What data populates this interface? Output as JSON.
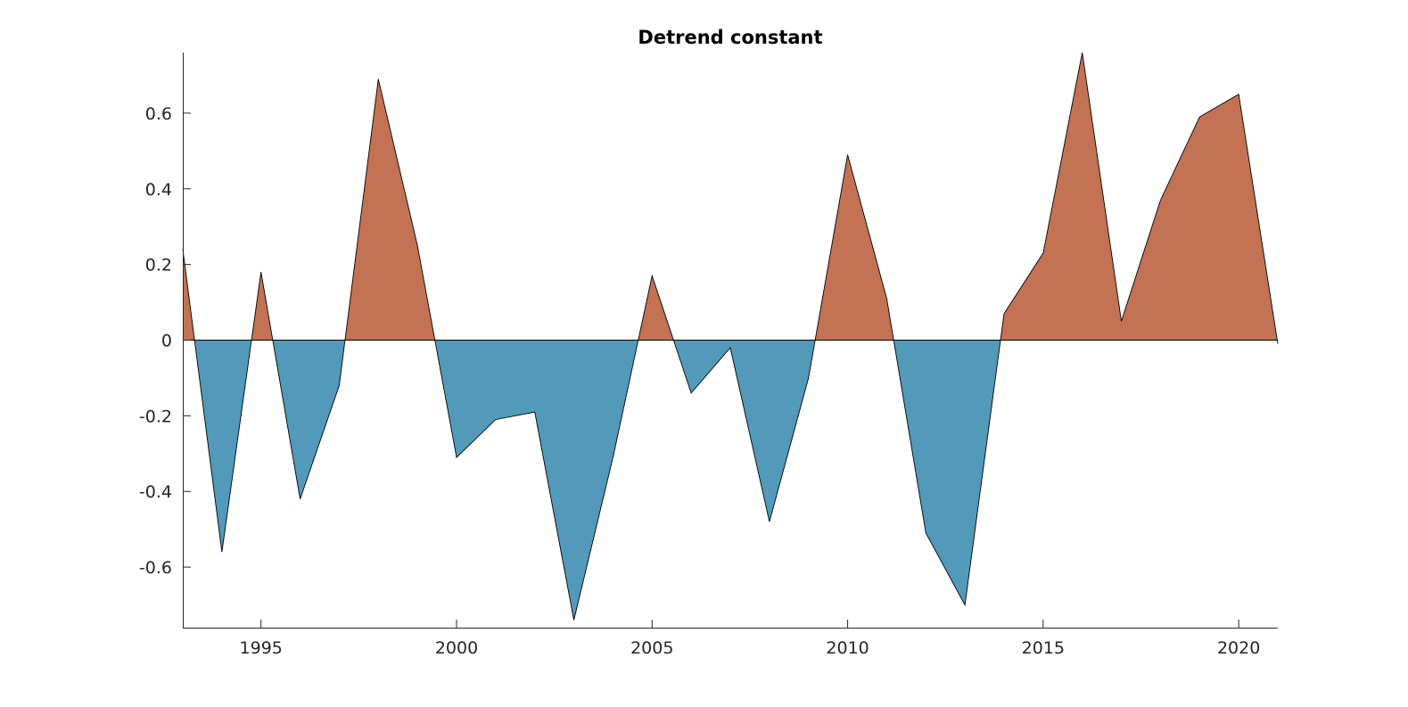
{
  "chart_data": {
    "type": "area",
    "title": "Detrend constant",
    "xlabel": "",
    "ylabel": "",
    "xlim": [
      1993,
      2021
    ],
    "ylim": [
      -0.76,
      0.76
    ],
    "xticks": [
      1995,
      2000,
      2005,
      2010,
      2015,
      2020
    ],
    "yticks": [
      -0.6,
      -0.4,
      -0.2,
      0,
      0.2,
      0.4,
      0.6
    ],
    "ytick_labels": [
      "-0.6",
      "-0.4",
      "-0.2",
      "0",
      "0.2",
      "0.4",
      "0.6"
    ],
    "grid": false,
    "legend": "none",
    "positive_color": "#c47254",
    "negative_color": "#539aba",
    "series": [
      {
        "x": [
          1993,
          1994,
          1995,
          1996,
          1997,
          1998,
          1999,
          2000,
          2001,
          2002,
          2003,
          2004,
          2005,
          2006,
          2007,
          2008,
          2009,
          2010,
          2011,
          2012,
          2013,
          2014,
          2015,
          2016,
          2017,
          2018,
          2019,
          2020,
          2021
        ],
        "values": [
          0.24,
          -0.56,
          0.18,
          -0.42,
          -0.12,
          0.69,
          0.25,
          -0.31,
          -0.21,
          -0.19,
          -0.74,
          -0.31,
          0.17,
          -0.14,
          -0.02,
          -0.48,
          -0.1,
          0.49,
          0.11,
          -0.51,
          -0.7,
          0.07,
          0.23,
          0.76,
          0.05,
          0.37,
          0.59,
          0.65,
          -0.01
        ]
      }
    ]
  }
}
